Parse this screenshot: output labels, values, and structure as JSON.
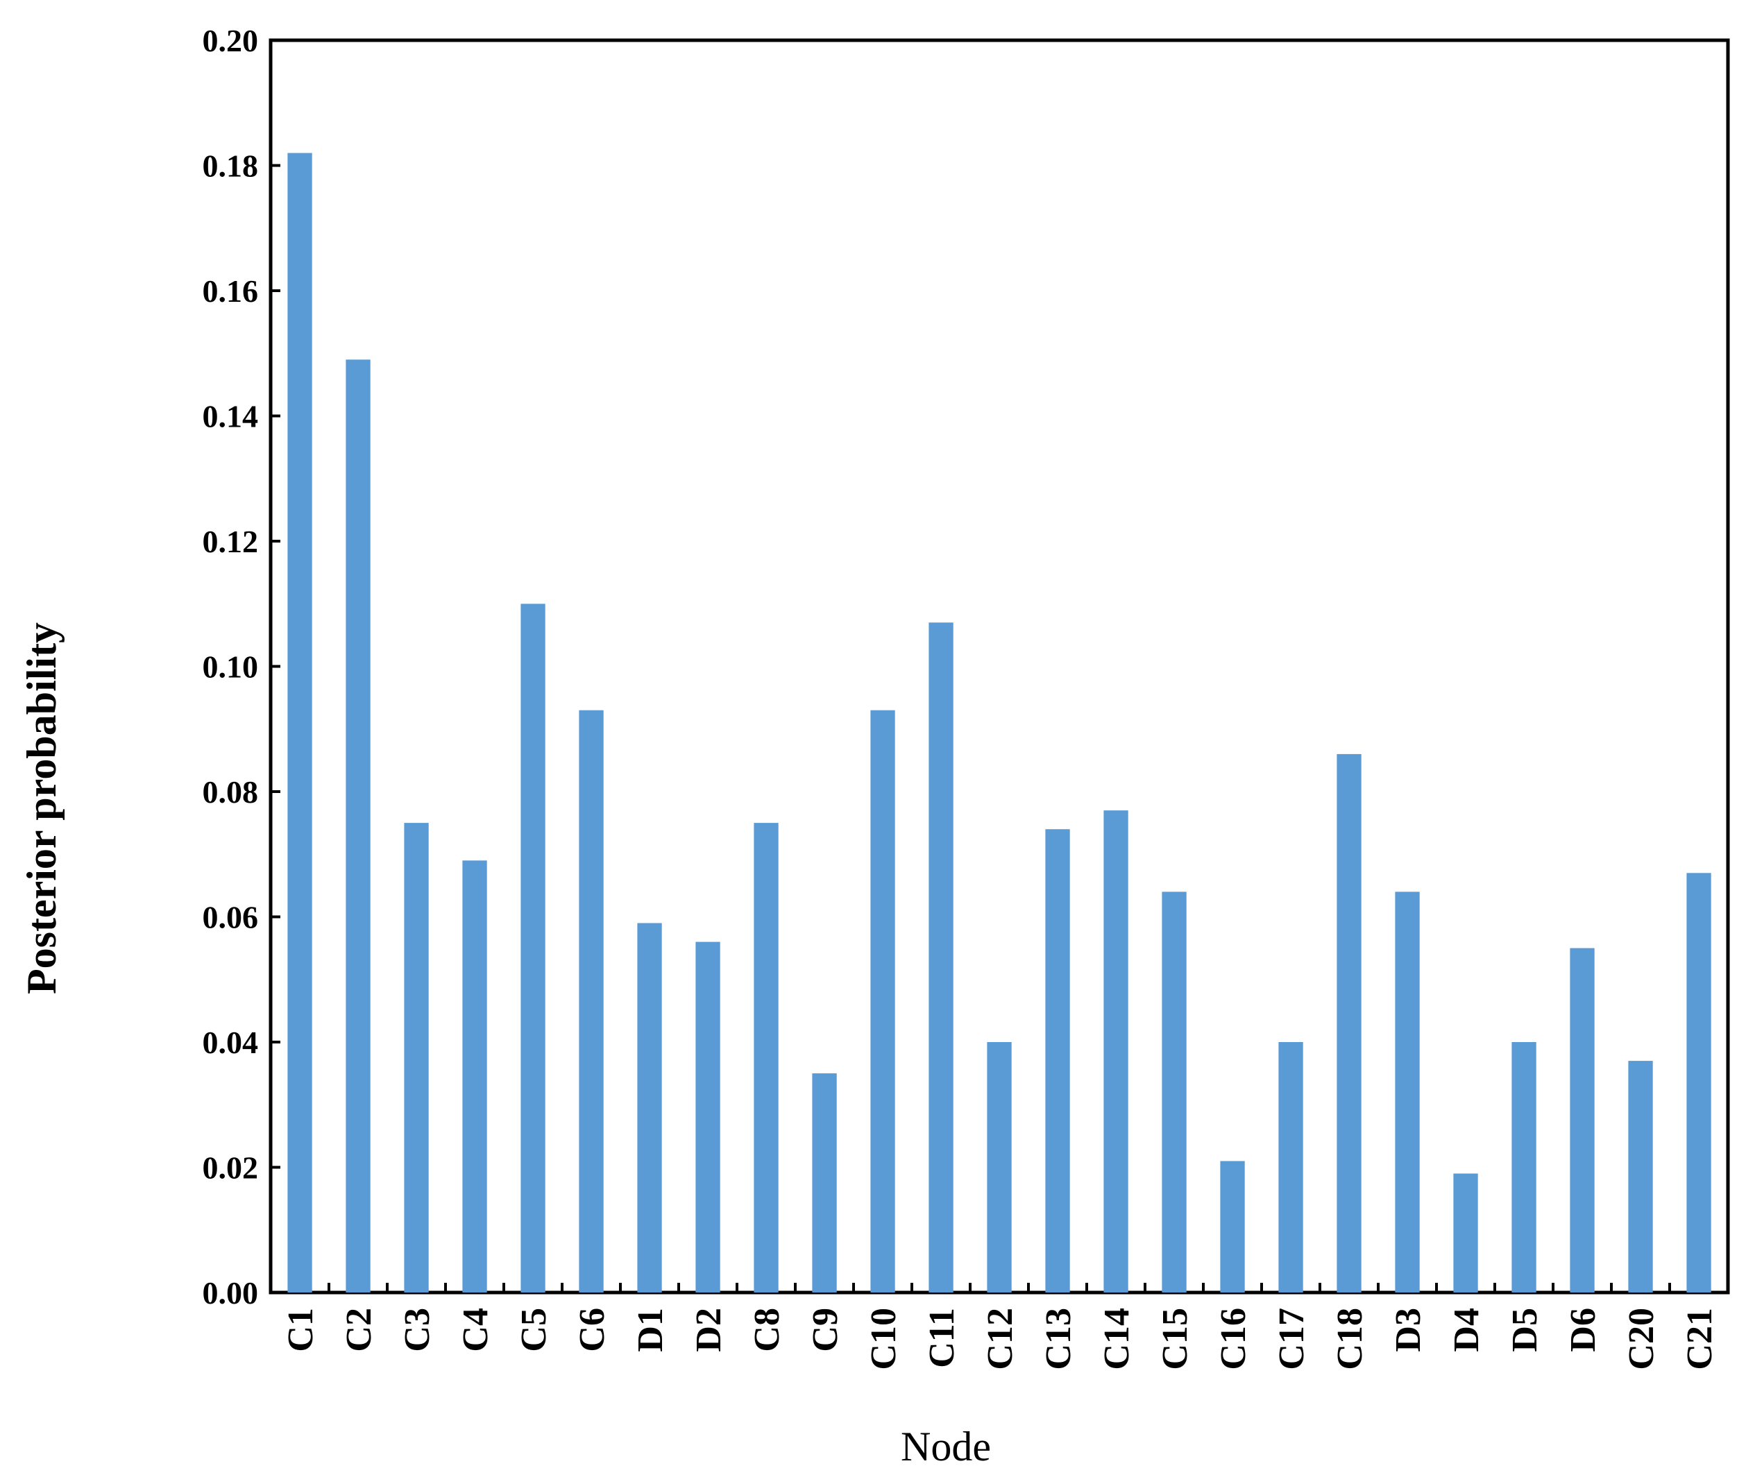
{
  "chart_data": {
    "type": "bar",
    "title": "",
    "xlabel": "Node",
    "ylabel": "Posterior probability",
    "ylim": [
      0,
      0.2
    ],
    "yticks": [
      "0.00",
      "0.02",
      "0.04",
      "0.06",
      "0.08",
      "0.10",
      "0.12",
      "0.14",
      "0.16",
      "0.18",
      "0.20"
    ],
    "grid": false,
    "legend": "none",
    "bar_color": "#5b9bd5",
    "categories": [
      "C1",
      "C2",
      "C3",
      "C4",
      "C5",
      "C6",
      "D1",
      "D2",
      "C8",
      "C9",
      "C10",
      "C11",
      "C12",
      "C13",
      "C14",
      "C15",
      "C16",
      "C17",
      "C18",
      "D3",
      "D4",
      "D5",
      "D6",
      "C20",
      "C21"
    ],
    "values": [
      0.182,
      0.149,
      0.075,
      0.069,
      0.11,
      0.093,
      0.059,
      0.056,
      0.075,
      0.035,
      0.093,
      0.107,
      0.04,
      0.074,
      0.077,
      0.064,
      0.021,
      0.04,
      0.086,
      0.064,
      0.019,
      0.04,
      0.055,
      0.037,
      0.067
    ]
  }
}
